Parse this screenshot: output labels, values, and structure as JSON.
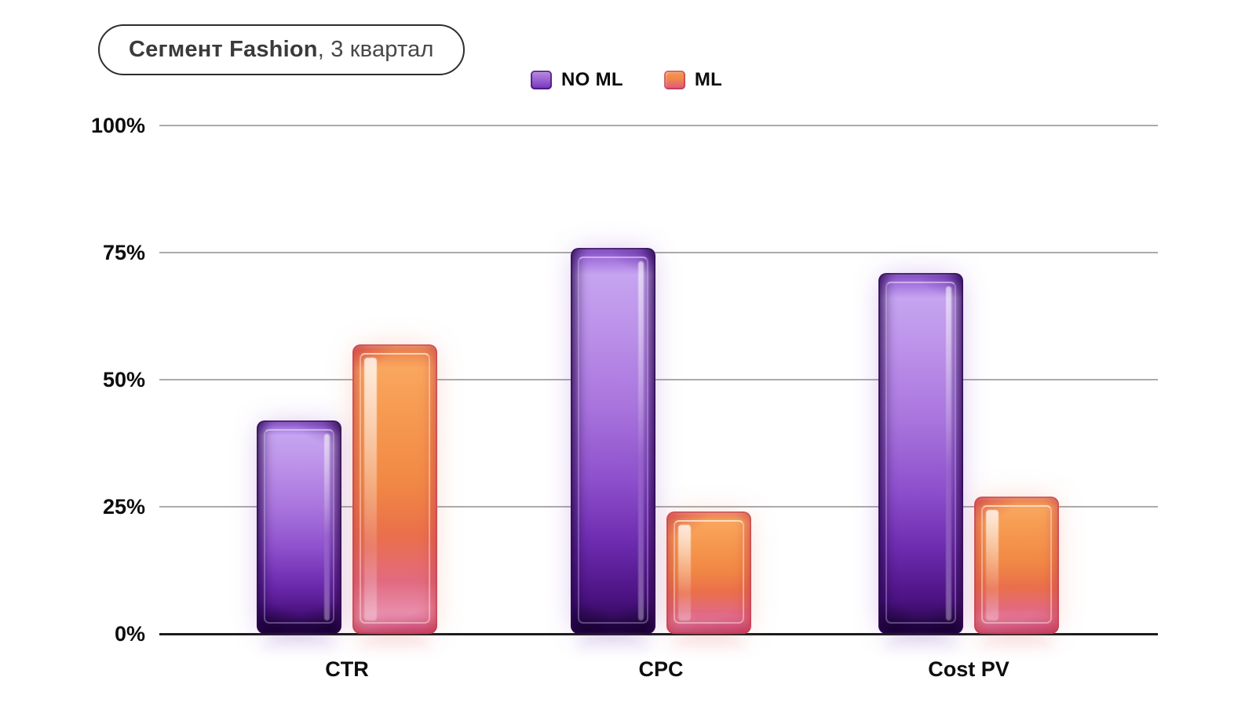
{
  "title": {
    "bold": "Сегмент Fashion",
    "regular": ", 3 квартал"
  },
  "chart_data": {
    "type": "bar",
    "title": "Сегмент Fashion, 3 квартал",
    "categories": [
      "CTR",
      "CPC",
      "Cost PV"
    ],
    "series": [
      {
        "name": "NO ML",
        "values": [
          42,
          76,
          71
        ],
        "accent": "#8a4fd0"
      },
      {
        "name": "ML",
        "values": [
          57,
          24,
          27
        ],
        "accent": "#f08845"
      }
    ],
    "ylabel": "",
    "ylim": [
      0,
      100
    ],
    "yticks": [
      "0%",
      "25%",
      "50%",
      "75%",
      "100%"
    ],
    "grid": true,
    "legend_position": "top-center"
  },
  "colors": {
    "no_ml_accent": "#8a4fd0",
    "ml_accent": "#f08845",
    "grid_line": "#ababab",
    "axis_line": "#1c1c1c",
    "text": "#0d0d0d"
  }
}
